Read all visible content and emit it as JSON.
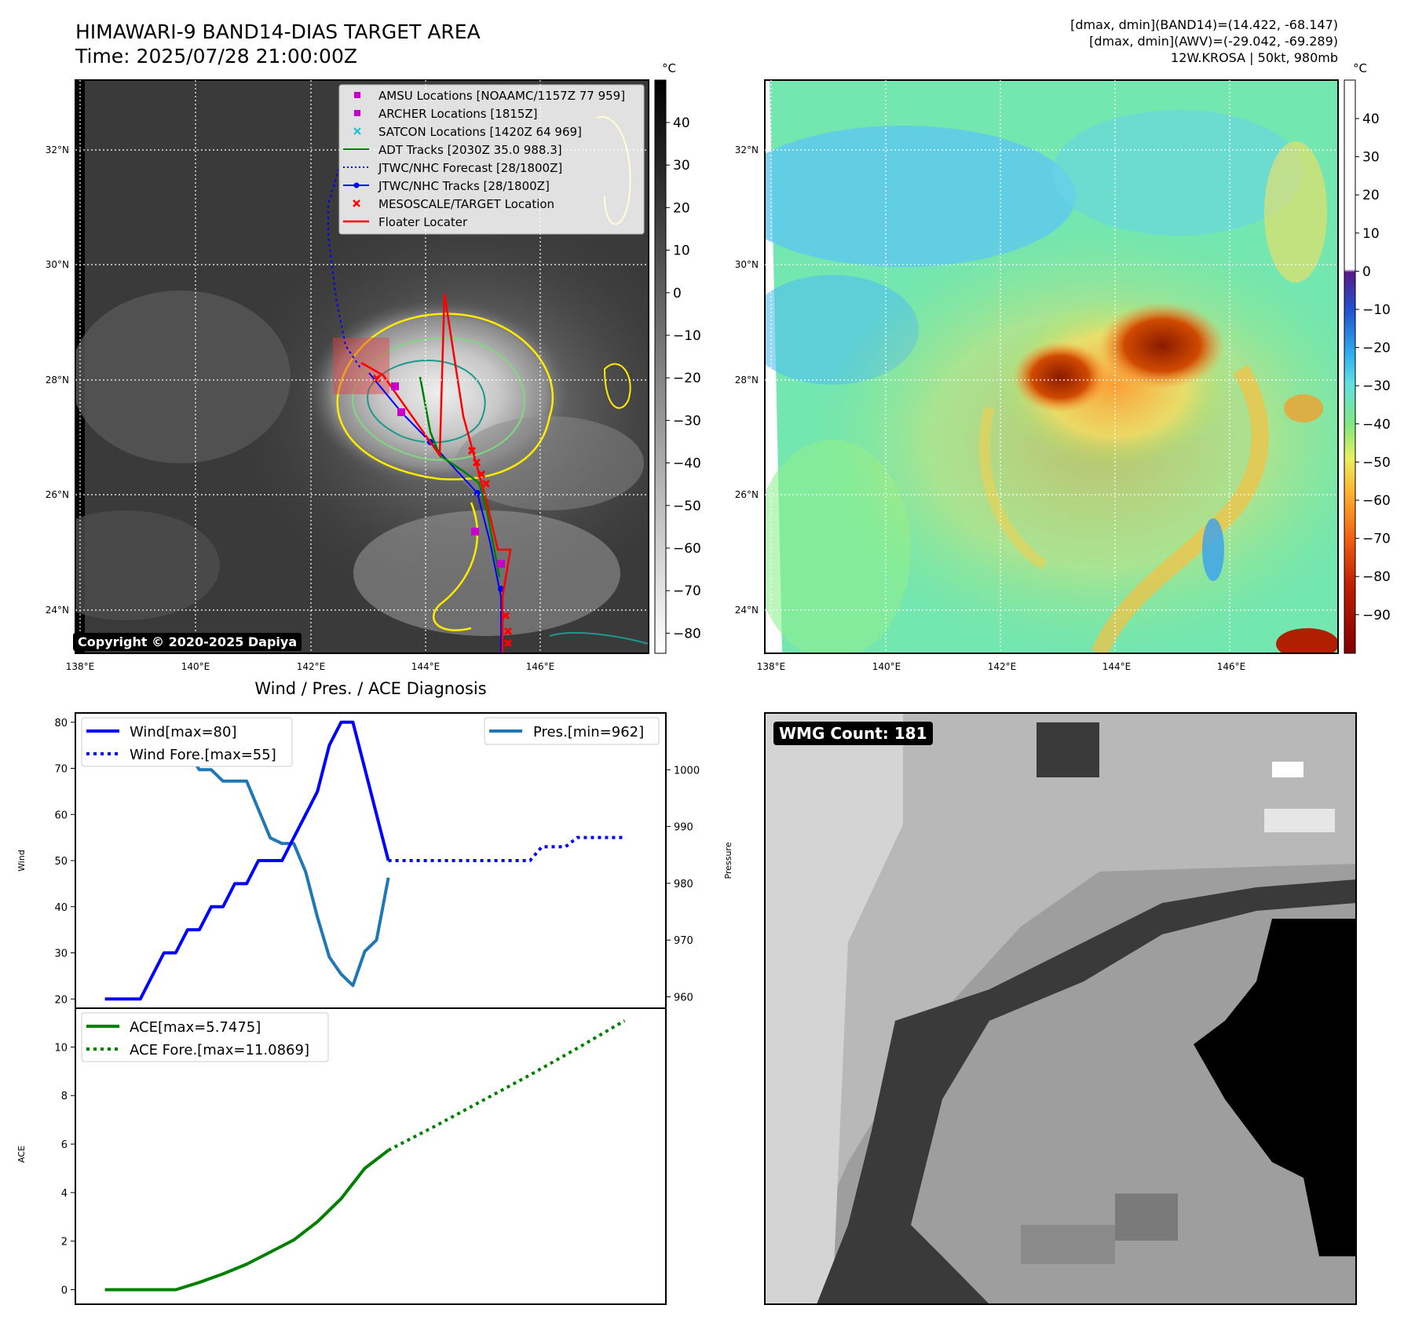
{
  "figure": {
    "title_line1": "HIMAWARI-9 BAND14-DIAS TARGET AREA",
    "title_line2": "Time: 2025/07/28 21:00:00Z",
    "info_line1": "[dmax, dmin](BAND14)=(14.422, -68.147)",
    "info_line2": "[dmax, dmin](AWV)=(-29.042, -69.289)",
    "info_line3": "12W.KROSA | 50kt, 980mb",
    "copyright": "Copyright © 2020-2025 Dapiya",
    "wmg_label": "WMG Count: 181"
  },
  "map": {
    "lon_labels": [
      "138°E",
      "140°E",
      "142°E",
      "144°E",
      "146°E"
    ],
    "lat_labels": [
      "32°N",
      "30°N",
      "28°N",
      "26°N",
      "24°N"
    ],
    "legend": [
      "AMSU Locations [NOAAMC/1157Z 77 959]",
      "ARCHER Locations [1815Z]",
      "SATCON Locations [1420Z 64 969]",
      "ADT Tracks [2030Z 35.0 988.3]",
      "JTWC/NHC Forecast [28/1800Z]",
      "JTWC/NHC Tracks [28/1800Z]",
      "MESOSCALE/TARGET Location",
      "Floater Locater"
    ],
    "colors": {
      "amsu": "#c800c8",
      "satcon": "#17becf",
      "adt": "#008000",
      "jtwc": "#0000ff",
      "target": "#ff0000",
      "contour_yellow": "#ffeb00",
      "contour_teal": "#1a9a8a",
      "contour_green": "#7fd97f"
    },
    "ir_colorbar": {
      "unit": "°C",
      "ticks": [
        "40",
        "30",
        "20",
        "10",
        "0",
        "−10",
        "−20",
        "−30",
        "−40",
        "−50",
        "−60",
        "−70",
        "−80"
      ]
    },
    "awv_colorbar": {
      "unit": "°C",
      "ticks": [
        "40",
        "30",
        "20",
        "10",
        "0",
        "−10",
        "−20",
        "−30",
        "−40",
        "−50",
        "−60",
        "−70",
        "−80",
        "−90"
      ]
    }
  },
  "chart_data": [
    {
      "type": "line",
      "title": "Wind / Pres. / ACE Diagnosis",
      "ylabel": "Wind",
      "ylabel_right": "Pressure",
      "ylim": [
        18,
        82
      ],
      "ylim_right": [
        958,
        1010
      ],
      "yticks": [
        20,
        30,
        40,
        50,
        60,
        70,
        80
      ],
      "yticks_right": [
        960,
        970,
        980,
        990,
        1000
      ],
      "color_wind": "#0000ff",
      "color_pressure": "#1f77b4",
      "series": [
        {
          "name": "Wind[max=80]",
          "style": "solid",
          "x": [
            0,
            3,
            5,
            6,
            7,
            8,
            9,
            10,
            11,
            12,
            13,
            14,
            15,
            16,
            17,
            18,
            19,
            20,
            21,
            22,
            23,
            24
          ],
          "values": [
            20,
            20,
            30,
            30,
            35,
            35,
            40,
            40,
            45,
            45,
            50,
            50,
            50,
            55,
            60,
            65,
            75,
            80,
            80,
            70,
            60,
            50
          ]
        },
        {
          "name": "Wind Fore.[max=55]",
          "style": "dotted",
          "x": [
            24,
            36,
            37,
            39,
            40,
            44
          ],
          "values": [
            50,
            50,
            53,
            53,
            55,
            55
          ]
        },
        {
          "name": "Pres.[min=962]",
          "style": "solid",
          "axis": "right",
          "x": [
            0,
            3,
            4,
            5,
            6,
            7,
            8,
            9,
            10,
            11,
            12,
            13,
            14,
            15,
            16,
            17,
            18,
            19,
            20,
            21,
            22,
            23,
            24
          ],
          "values": [
            1007,
            1007,
            1004,
            1004,
            1003,
            1003,
            1000,
            1000,
            998,
            998,
            998,
            993,
            988,
            987,
            987,
            982,
            974,
            967,
            964,
            962,
            968,
            970,
            981
          ]
        }
      ]
    },
    {
      "type": "line",
      "ylabel": "ACE",
      "ylim": [
        -0.6,
        11.6
      ],
      "yticks": [
        0,
        2,
        4,
        6,
        8,
        10
      ],
      "color": "#008000",
      "series": [
        {
          "name": "ACE[max=5.7475]",
          "style": "solid",
          "x": [
            0,
            3,
            6,
            8,
            10,
            12,
            14,
            16,
            18,
            20,
            22,
            24
          ],
          "values": [
            0,
            0,
            0,
            0.3,
            0.65,
            1.05,
            1.55,
            2.05,
            2.8,
            3.75,
            5.0,
            5.7475
          ]
        },
        {
          "name": "ACE Fore.[max=11.0869]",
          "style": "dotted",
          "x": [
            24,
            28,
            32,
            36,
            40,
            44
          ],
          "values": [
            5.7475,
            6.75,
            7.8,
            8.85,
            9.95,
            11.0869
          ]
        }
      ]
    }
  ]
}
